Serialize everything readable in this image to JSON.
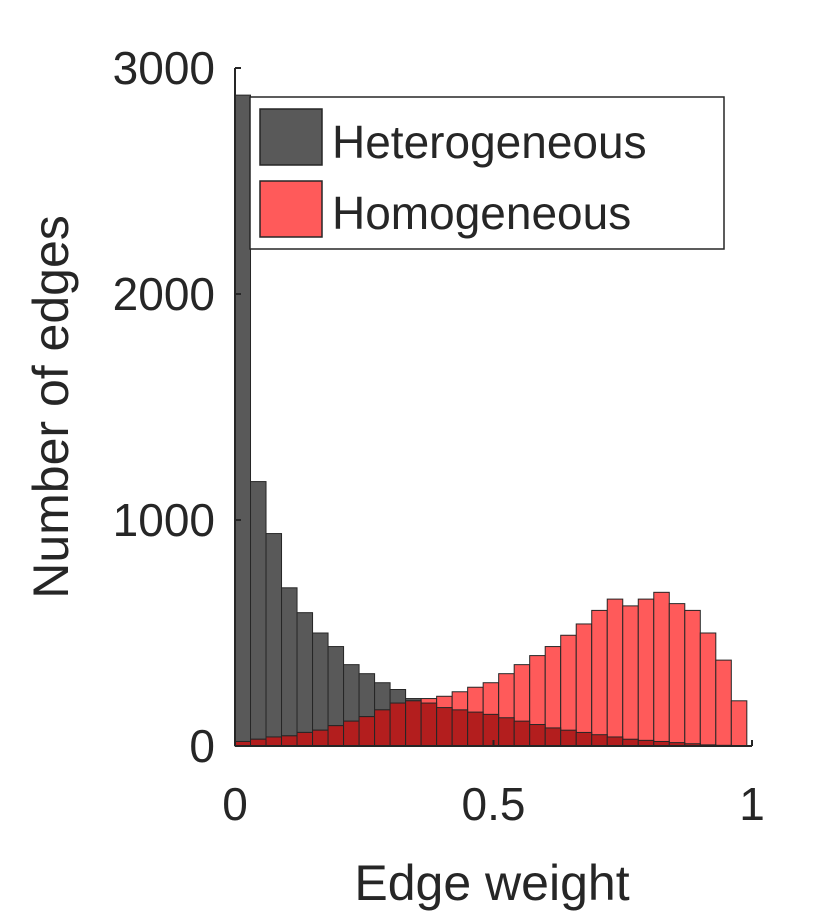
{
  "chart_data": {
    "type": "bar",
    "subtype": "overlaid-histogram",
    "xlabel": "Edge weight",
    "ylabel": "Number of edges",
    "xlim": [
      0,
      1
    ],
    "ylim": [
      0,
      3000
    ],
    "xticks": [
      0,
      0.5,
      1
    ],
    "xtick_labels": [
      "0",
      "0.5",
      "1"
    ],
    "yticks": [
      0,
      1000,
      2000,
      3000
    ],
    "ytick_labels": [
      "0",
      "1000",
      "2000",
      "3000"
    ],
    "grid": false,
    "legend_position": "top-right",
    "bin_width": 0.03,
    "bin_starts": [
      0.0,
      0.03,
      0.06,
      0.09,
      0.12,
      0.15,
      0.18,
      0.21,
      0.24,
      0.27,
      0.3,
      0.33,
      0.36,
      0.39,
      0.42,
      0.45,
      0.48,
      0.51,
      0.54,
      0.57,
      0.6,
      0.63,
      0.66,
      0.69,
      0.72,
      0.75,
      0.78,
      0.81,
      0.84,
      0.87,
      0.9,
      0.93,
      0.96
    ],
    "series": [
      {
        "name": "Heterogeneous",
        "color": "#595959",
        "values": [
          2880,
          1170,
          940,
          700,
          590,
          500,
          440,
          360,
          320,
          280,
          250,
          210,
          190,
          170,
          160,
          150,
          140,
          125,
          110,
          95,
          80,
          70,
          60,
          50,
          40,
          30,
          25,
          20,
          15,
          10,
          5,
          3,
          1
        ]
      },
      {
        "name": "Homogeneous",
        "color": "#ff5a5a",
        "values": [
          20,
          30,
          40,
          45,
          60,
          70,
          90,
          110,
          130,
          160,
          190,
          200,
          210,
          220,
          240,
          260,
          280,
          320,
          360,
          400,
          440,
          490,
          540,
          600,
          650,
          620,
          650,
          680,
          630,
          600,
          500,
          380,
          200
        ]
      }
    ]
  }
}
